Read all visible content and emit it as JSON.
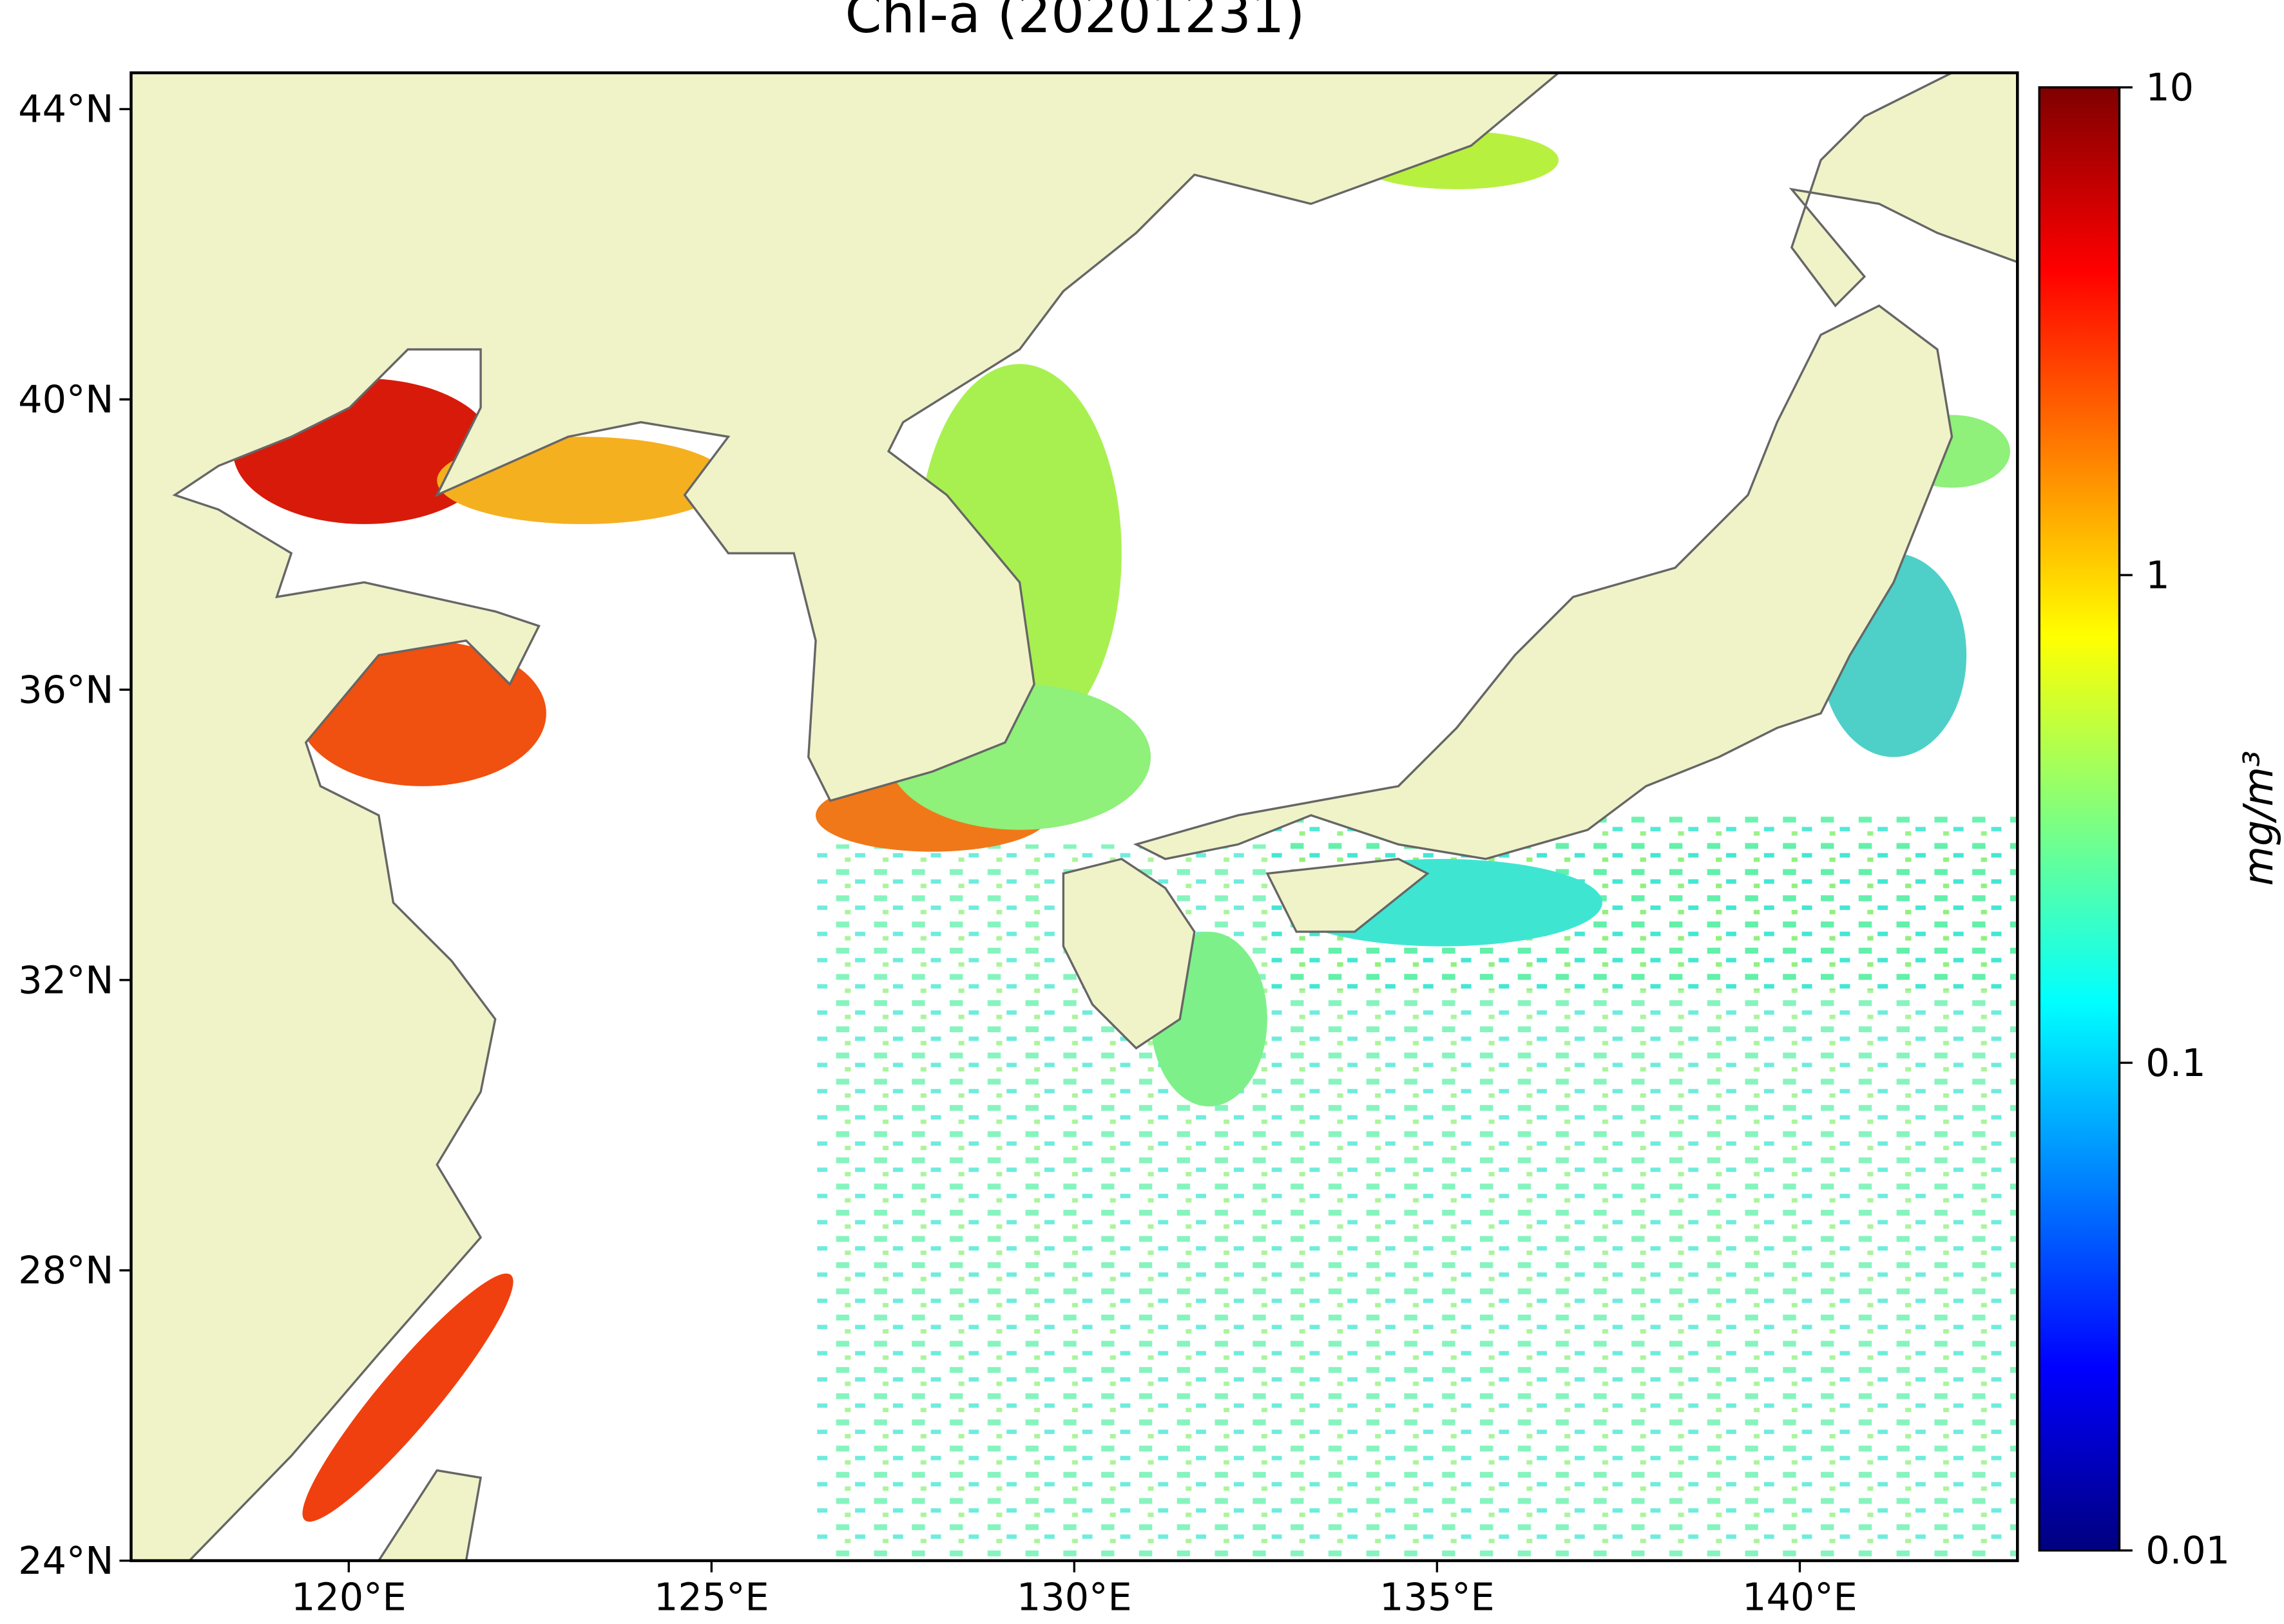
{
  "map": {
    "title": "Chl-a (20201231)",
    "xlim": [
      117,
      143
    ],
    "ylim": [
      24,
      44.5
    ],
    "xticks": [
      {
        "value": 120,
        "label": "120°E"
      },
      {
        "value": 125,
        "label": "125°E"
      },
      {
        "value": 130,
        "label": "130°E"
      },
      {
        "value": 135,
        "label": "135°E"
      },
      {
        "value": 140,
        "label": "140°E"
      }
    ],
    "yticks": [
      {
        "value": 24,
        "label": "24°N"
      },
      {
        "value": 28,
        "label": "28°N"
      },
      {
        "value": 32,
        "label": "32°N"
      },
      {
        "value": 36,
        "label": "36°N"
      },
      {
        "value": 40,
        "label": "40°N"
      },
      {
        "value": 44,
        "label": "44°N"
      }
    ],
    "land_color": "#f0f3c8",
    "colorbar": {
      "label": "mg/m³",
      "log": true,
      "lim": [
        0.01,
        10
      ],
      "ticks": [
        0.01,
        0.1,
        1,
        10
      ],
      "colors": [
        "#00007f",
        "#0000ff",
        "#007fff",
        "#00ffff",
        "#7fff7f",
        "#ffff00",
        "#ff7f00",
        "#ff0000",
        "#7f0000"
      ]
    }
  }
}
